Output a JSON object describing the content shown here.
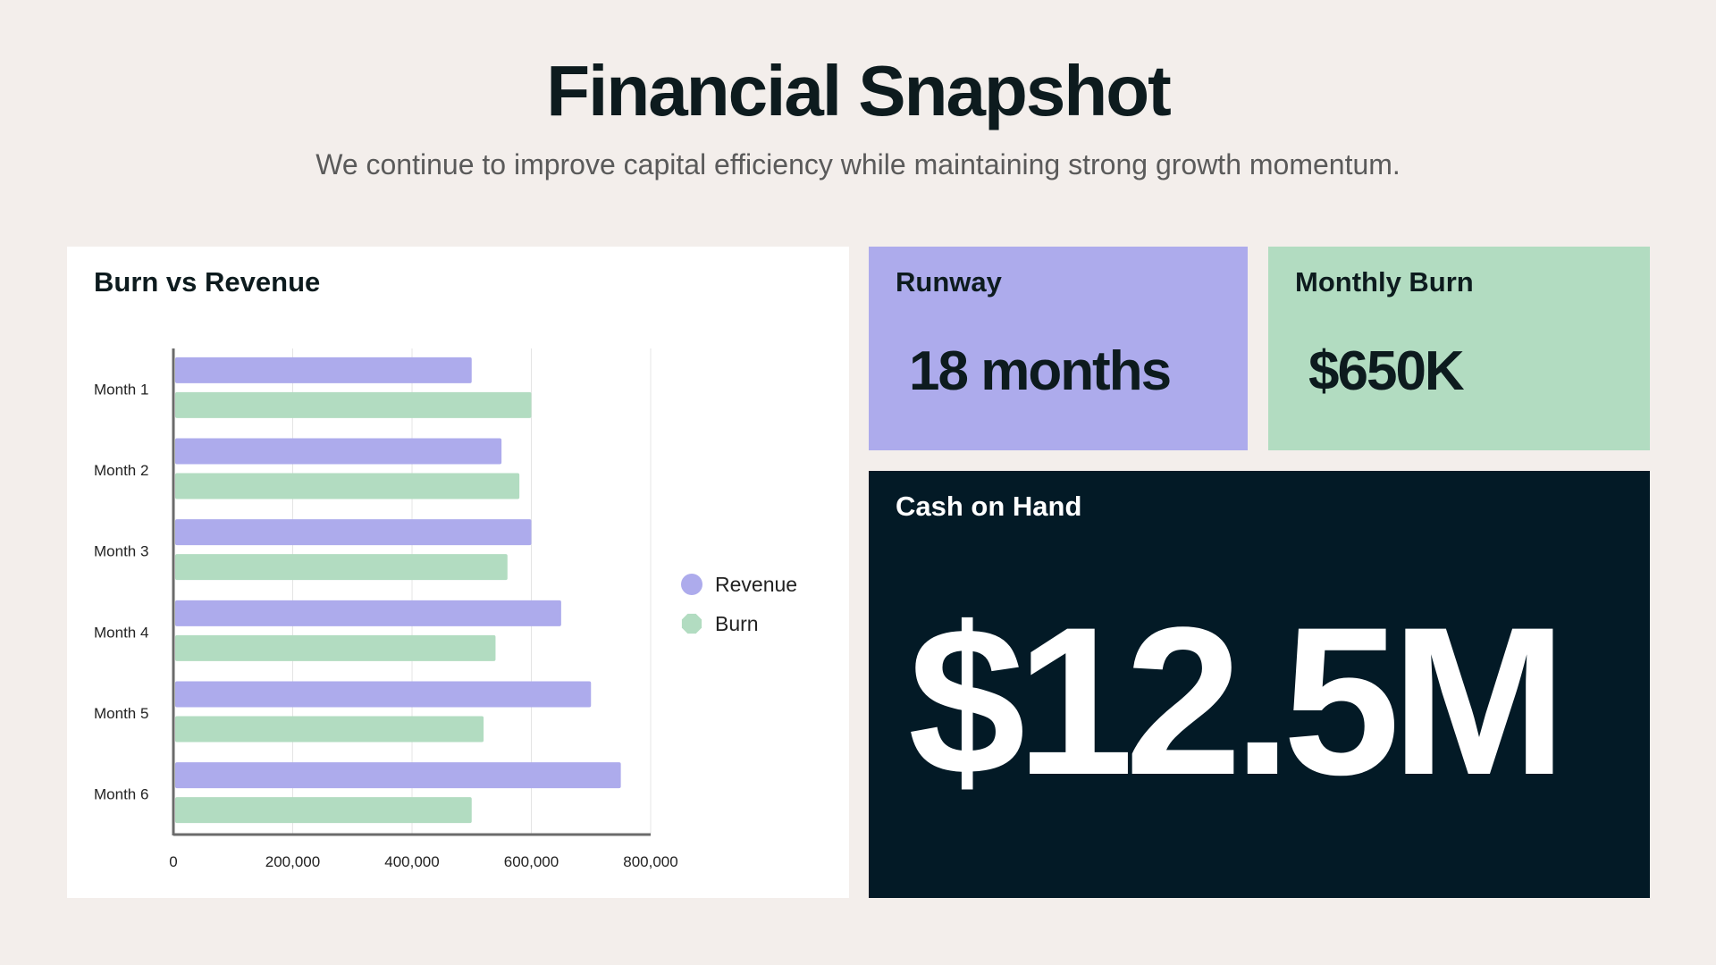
{
  "header": {
    "title": "Financial Snapshot",
    "subtitle": "We continue to improve capital efficiency while maintaining strong growth momentum."
  },
  "runway": {
    "label": "Runway",
    "value": "18 months"
  },
  "monthly_burn": {
    "label": "Monthly Burn",
    "value": "$650K"
  },
  "cash_on_hand": {
    "label": "Cash on Hand",
    "value": "$12.5M"
  },
  "colors": {
    "background": "#f3eeeb",
    "revenue": "#adabec",
    "burn": "#b2dcc1",
    "dark": "#031a26"
  },
  "chart_data": {
    "type": "bar",
    "orientation": "horizontal",
    "title": "Burn vs Revenue",
    "categories": [
      "Month 1",
      "Month 2",
      "Month 3",
      "Month 4",
      "Month 5",
      "Month 6"
    ],
    "series": [
      {
        "name": "Revenue",
        "color": "#adabec",
        "values": [
          500000,
          550000,
          600000,
          650000,
          700000,
          750000
        ]
      },
      {
        "name": "Burn",
        "color": "#b2dcc1",
        "values": [
          600000,
          580000,
          560000,
          540000,
          520000,
          500000
        ]
      }
    ],
    "xlim": [
      0,
      800000
    ],
    "xticks": [
      0,
      200000,
      400000,
      600000,
      800000
    ],
    "xtick_labels": [
      "0",
      "200,000",
      "400,000",
      "600,000",
      "800,000"
    ],
    "grid": true,
    "legend_position": "right"
  }
}
